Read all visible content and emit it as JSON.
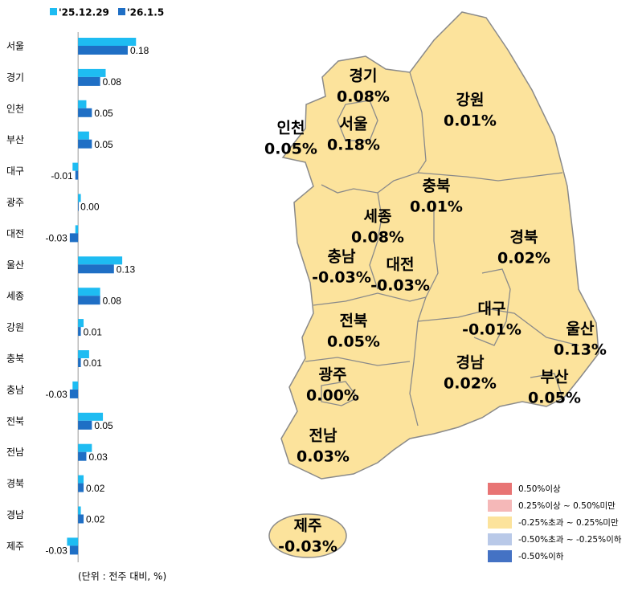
{
  "chart_data": {
    "type": "bar",
    "orientation": "horizontal",
    "categories": [
      "서울",
      "경기",
      "인천",
      "부산",
      "대구",
      "광주",
      "대전",
      "울산",
      "세종",
      "강원",
      "충북",
      "충남",
      "전북",
      "전남",
      "경북",
      "경남",
      "제주"
    ],
    "series": [
      {
        "name": "'25.12.29",
        "color": "#1ebcf2",
        "values": [
          0.21,
          0.1,
          0.03,
          0.04,
          -0.02,
          0.01,
          -0.01,
          0.16,
          0.08,
          0.02,
          0.04,
          -0.02,
          0.09,
          0.05,
          0.02,
          0.01,
          -0.04
        ]
      },
      {
        "name": "'26.1.5",
        "color": "#1f6fc5",
        "values": [
          0.18,
          0.08,
          0.05,
          0.05,
          -0.01,
          0.0,
          -0.03,
          0.13,
          0.08,
          0.01,
          0.01,
          -0.03,
          0.05,
          0.03,
          0.02,
          0.02,
          -0.03
        ],
        "value_labels": [
          "0.18",
          "0.08",
          "0.05",
          "0.05",
          "-0.01",
          "0.00",
          "-0.03",
          "0.13",
          "0.08",
          "0.01",
          "0.01",
          "-0.03",
          "0.05",
          "0.03",
          "0.02",
          "0.02",
          "-0.03"
        ]
      }
    ],
    "xlim": [
      -0.05,
      0.25
    ],
    "note": "(단위 : 전주 대비, %)"
  },
  "map": {
    "regions": [
      {
        "name": "경기",
        "value": "0.08%"
      },
      {
        "name": "강원",
        "value": "0.01%"
      },
      {
        "name": "인천",
        "value": "0.05%"
      },
      {
        "name": "서울",
        "value": "0.18%"
      },
      {
        "name": "충북",
        "value": "0.01%"
      },
      {
        "name": "세종",
        "value": "0.08%"
      },
      {
        "name": "경북",
        "value": "0.02%"
      },
      {
        "name": "충남",
        "value": "-0.03%"
      },
      {
        "name": "대전",
        "value": "-0.03%"
      },
      {
        "name": "대구",
        "value": "-0.01%"
      },
      {
        "name": "전북",
        "value": "0.05%"
      },
      {
        "name": "울산",
        "value": "0.13%"
      },
      {
        "name": "경남",
        "value": "0.02%"
      },
      {
        "name": "부산",
        "value": "0.05%"
      },
      {
        "name": "광주",
        "value": "0.00%"
      },
      {
        "name": "전남",
        "value": "0.03%"
      },
      {
        "name": "제주",
        "value": "-0.03%"
      }
    ],
    "legend": [
      {
        "label": "0.50%이상",
        "color": "#e87474"
      },
      {
        "label": "0.25%이상 ~ 0.50%미만",
        "color": "#f5b8b8"
      },
      {
        "label": "-0.25%초과 ~ 0.25%미만",
        "color": "#fce39c"
      },
      {
        "label": "-0.50%초과 ~ -0.25%이하",
        "color": "#b9c9e8"
      },
      {
        "label": "-0.50%이하",
        "color": "#4472c4"
      }
    ]
  }
}
